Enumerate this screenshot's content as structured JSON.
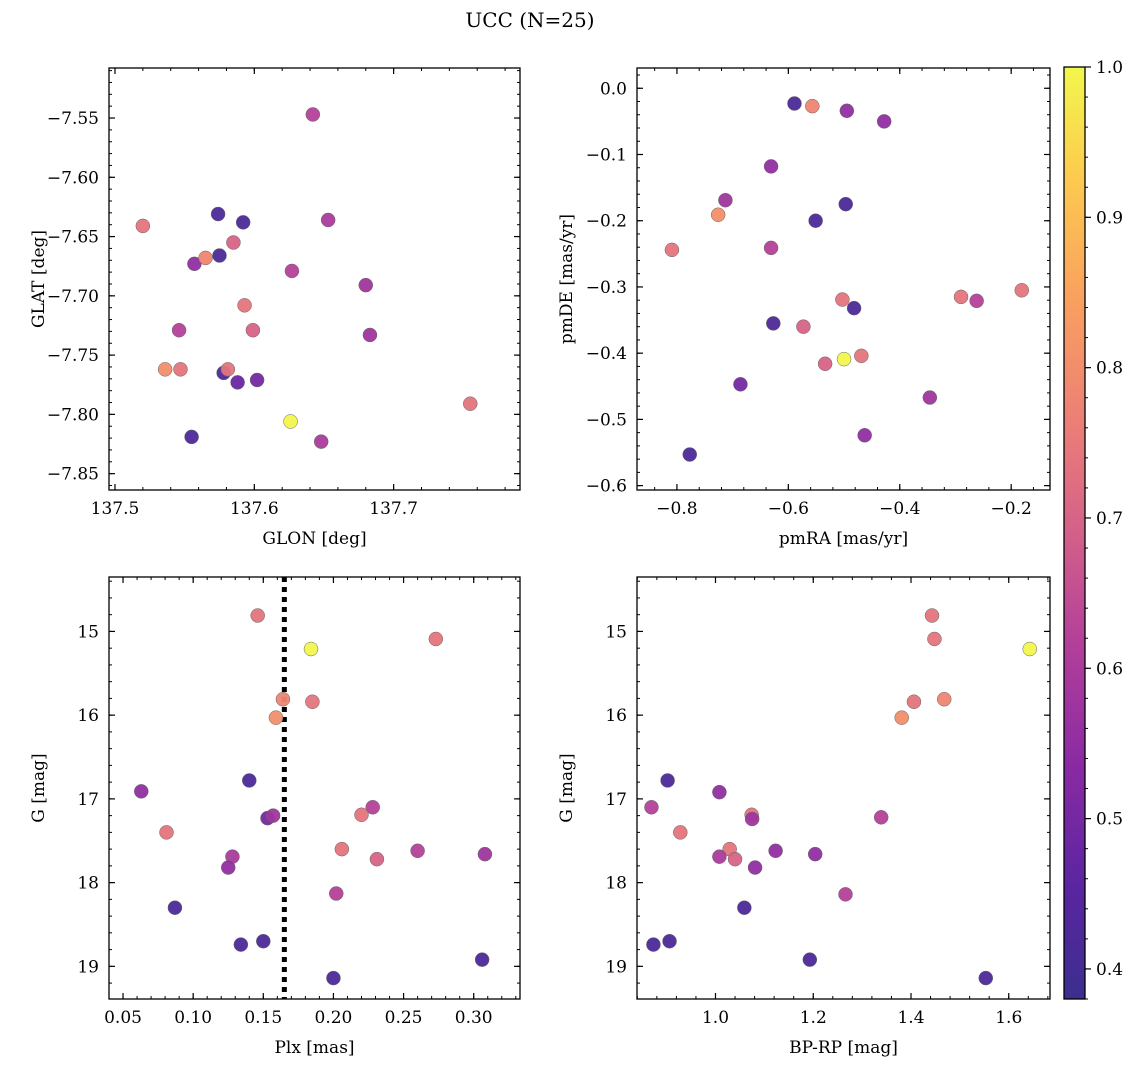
{
  "figure": {
    "title": "UCC (N=25)"
  },
  "colorbar": {
    "colormap": "plasma",
    "range": [
      0.38,
      1.0
    ],
    "ticks": [
      "0.4",
      "0.5",
      "0.6",
      "0.7",
      "0.8",
      "0.9",
      "1.0"
    ],
    "tick_values": [
      0.4,
      0.5,
      0.6,
      0.7,
      0.8,
      0.9,
      1.0
    ]
  },
  "chart_data": [
    {
      "type": "scatter",
      "xlabel": "GLON [deg]",
      "ylabel": "GLAT [deg]",
      "xlim": [
        137.4957,
        137.7907
      ],
      "ylim": [
        -7.8638,
        -7.5078
      ],
      "y_inverted": false,
      "xticks": [
        137.5,
        137.6,
        137.7
      ],
      "xtick_labels": [
        "137.5",
        "137.6",
        "137.7"
      ],
      "yticks": [
        -7.55,
        -7.6,
        -7.65,
        -7.7,
        -7.75,
        -7.8,
        -7.85
      ],
      "ytick_labels": [
        "−7.55",
        "−7.60",
        "−7.65",
        "−7.70",
        "−7.75",
        "−7.80",
        "−7.85"
      ],
      "points": [
        {
          "x": 137.52,
          "y": -7.641,
          "c": 0.74
        },
        {
          "x": 137.536,
          "y": -7.762,
          "c": 0.8
        },
        {
          "x": 137.546,
          "y": -7.729,
          "c": 0.62
        },
        {
          "x": 137.547,
          "y": -7.762,
          "c": 0.74
        },
        {
          "x": 137.555,
          "y": -7.819,
          "c": 0.42
        },
        {
          "x": 137.557,
          "y": -7.673,
          "c": 0.55
        },
        {
          "x": 137.565,
          "y": -7.668,
          "c": 0.78
        },
        {
          "x": 137.574,
          "y": -7.631,
          "c": 0.42
        },
        {
          "x": 137.575,
          "y": -7.666,
          "c": 0.42
        },
        {
          "x": 137.578,
          "y": -7.765,
          "c": 0.42
        },
        {
          "x": 137.581,
          "y": -7.762,
          "c": 0.74
        },
        {
          "x": 137.585,
          "y": -7.655,
          "c": 0.7
        },
        {
          "x": 137.588,
          "y": -7.773,
          "c": 0.48
        },
        {
          "x": 137.592,
          "y": -7.638,
          "c": 0.42
        },
        {
          "x": 137.593,
          "y": -7.708,
          "c": 0.74
        },
        {
          "x": 137.599,
          "y": -7.729,
          "c": 0.7
        },
        {
          "x": 137.602,
          "y": -7.771,
          "c": 0.5
        },
        {
          "x": 137.626,
          "y": -7.806,
          "c": 1.0
        },
        {
          "x": 137.627,
          "y": -7.679,
          "c": 0.62
        },
        {
          "x": 137.642,
          "y": -7.547,
          "c": 0.62
        },
        {
          "x": 137.648,
          "y": -7.823,
          "c": 0.6
        },
        {
          "x": 137.653,
          "y": -7.636,
          "c": 0.6
        },
        {
          "x": 137.68,
          "y": -7.691,
          "c": 0.58
        },
        {
          "x": 137.683,
          "y": -7.733,
          "c": 0.58
        },
        {
          "x": 137.755,
          "y": -7.791,
          "c": 0.74
        }
      ]
    },
    {
      "type": "scatter",
      "xlabel": "pmRA [mas/yr]",
      "ylabel": "pmDE [mas/yr]",
      "xlim": [
        -0.8717,
        -0.1303
      ],
      "ylim": [
        -0.6066,
        0.0306
      ],
      "y_inverted": false,
      "xticks": [
        -0.8,
        -0.6,
        -0.4,
        -0.2
      ],
      "xtick_labels": [
        "−0.8",
        "−0.6",
        "−0.4",
        "−0.2"
      ],
      "yticks": [
        0.0,
        -0.1,
        -0.2,
        -0.3,
        -0.4,
        -0.5,
        -0.6
      ],
      "ytick_labels": [
        "0.0",
        "−0.1",
        "−0.2",
        "−0.3",
        "−0.4",
        "−0.5",
        "−0.6"
      ],
      "points": [
        {
          "x": -0.589,
          "y": -0.023,
          "c": 0.42
        },
        {
          "x": -0.557,
          "y": -0.027,
          "c": 0.78
        },
        {
          "x": -0.495,
          "y": -0.034,
          "c": 0.55
        },
        {
          "x": -0.428,
          "y": -0.05,
          "c": 0.55
        },
        {
          "x": -0.631,
          "y": -0.118,
          "c": 0.55
        },
        {
          "x": -0.713,
          "y": -0.169,
          "c": 0.58
        },
        {
          "x": -0.726,
          "y": -0.191,
          "c": 0.8
        },
        {
          "x": -0.497,
          "y": -0.175,
          "c": 0.42
        },
        {
          "x": -0.551,
          "y": -0.2,
          "c": 0.42
        },
        {
          "x": -0.809,
          "y": -0.244,
          "c": 0.74
        },
        {
          "x": -0.631,
          "y": -0.241,
          "c": 0.62
        },
        {
          "x": -0.503,
          "y": -0.319,
          "c": 0.74
        },
        {
          "x": -0.29,
          "y": -0.315,
          "c": 0.74
        },
        {
          "x": -0.262,
          "y": -0.321,
          "c": 0.62
        },
        {
          "x": -0.181,
          "y": -0.305,
          "c": 0.74
        },
        {
          "x": -0.482,
          "y": -0.332,
          "c": 0.42
        },
        {
          "x": -0.627,
          "y": -0.355,
          "c": 0.42
        },
        {
          "x": -0.573,
          "y": -0.36,
          "c": 0.7
        },
        {
          "x": -0.469,
          "y": -0.404,
          "c": 0.74
        },
        {
          "x": -0.5,
          "y": -0.409,
          "c": 1.0
        },
        {
          "x": -0.534,
          "y": -0.416,
          "c": 0.7
        },
        {
          "x": -0.686,
          "y": -0.447,
          "c": 0.5
        },
        {
          "x": -0.346,
          "y": -0.467,
          "c": 0.58
        },
        {
          "x": -0.463,
          "y": -0.524,
          "c": 0.55
        },
        {
          "x": -0.777,
          "y": -0.553,
          "c": 0.42
        }
      ]
    },
    {
      "type": "scatter",
      "xlabel": "Plx [mas]",
      "ylabel": "G [mag]",
      "xlim": [
        0.04,
        0.333
      ],
      "ylim": [
        14.35,
        19.39
      ],
      "y_inverted": true,
      "xticks": [
        0.05,
        0.1,
        0.15,
        0.2,
        0.25,
        0.3
      ],
      "xtick_labels": [
        "0.05",
        "0.10",
        "0.15",
        "0.20",
        "0.25",
        "0.30"
      ],
      "yticks": [
        15,
        16,
        17,
        18,
        19
      ],
      "ytick_labels": [
        "15",
        "16",
        "17",
        "18",
        "19"
      ],
      "vline": {
        "x": 0.165,
        "style": "dotted",
        "color": "#000000"
      },
      "points": [
        {
          "x": 0.146,
          "y": 14.81,
          "c": 0.74
        },
        {
          "x": 0.184,
          "y": 15.21,
          "c": 1.0
        },
        {
          "x": 0.273,
          "y": 15.09,
          "c": 0.74
        },
        {
          "x": 0.164,
          "y": 15.81,
          "c": 0.78
        },
        {
          "x": 0.185,
          "y": 15.84,
          "c": 0.74
        },
        {
          "x": 0.159,
          "y": 16.03,
          "c": 0.8
        },
        {
          "x": 0.14,
          "y": 16.78,
          "c": 0.42
        },
        {
          "x": 0.063,
          "y": 16.91,
          "c": 0.55
        },
        {
          "x": 0.228,
          "y": 17.1,
          "c": 0.62
        },
        {
          "x": 0.081,
          "y": 17.4,
          "c": 0.74
        },
        {
          "x": 0.22,
          "y": 17.19,
          "c": 0.74
        },
        {
          "x": 0.153,
          "y": 17.23,
          "c": 0.5
        },
        {
          "x": 0.157,
          "y": 17.2,
          "c": 0.58
        },
        {
          "x": 0.206,
          "y": 17.6,
          "c": 0.74
        },
        {
          "x": 0.26,
          "y": 17.62,
          "c": 0.62
        },
        {
          "x": 0.128,
          "y": 17.69,
          "c": 0.6
        },
        {
          "x": 0.231,
          "y": 17.72,
          "c": 0.7
        },
        {
          "x": 0.308,
          "y": 17.66,
          "c": 0.58
        },
        {
          "x": 0.125,
          "y": 17.82,
          "c": 0.55
        },
        {
          "x": 0.202,
          "y": 18.13,
          "c": 0.62
        },
        {
          "x": 0.087,
          "y": 18.3,
          "c": 0.42
        },
        {
          "x": 0.15,
          "y": 18.7,
          "c": 0.42
        },
        {
          "x": 0.134,
          "y": 18.74,
          "c": 0.42
        },
        {
          "x": 0.306,
          "y": 18.92,
          "c": 0.42
        },
        {
          "x": 0.2,
          "y": 19.14,
          "c": 0.42
        }
      ]
    },
    {
      "type": "scatter",
      "xlabel": "BP-RP [mag]",
      "ylabel": "G [mag]",
      "xlim": [
        0.8394,
        1.6844
      ],
      "ylim": [
        14.35,
        19.39
      ],
      "y_inverted": true,
      "xticks": [
        1.0,
        1.2,
        1.4,
        1.6
      ],
      "xtick_labels": [
        "1.0",
        "1.2",
        "1.4",
        "1.6"
      ],
      "yticks": [
        15,
        16,
        17,
        18,
        19
      ],
      "ytick_labels": [
        "15",
        "16",
        "17",
        "18",
        "19"
      ],
      "points": [
        {
          "x": 1.443,
          "y": 14.81,
          "c": 0.74
        },
        {
          "x": 1.448,
          "y": 15.09,
          "c": 0.74
        },
        {
          "x": 1.643,
          "y": 15.21,
          "c": 1.0
        },
        {
          "x": 1.406,
          "y": 15.84,
          "c": 0.74
        },
        {
          "x": 1.468,
          "y": 15.81,
          "c": 0.78
        },
        {
          "x": 1.381,
          "y": 16.03,
          "c": 0.8
        },
        {
          "x": 0.902,
          "y": 16.78,
          "c": 0.42
        },
        {
          "x": 1.008,
          "y": 16.92,
          "c": 0.55
        },
        {
          "x": 0.869,
          "y": 17.1,
          "c": 0.62
        },
        {
          "x": 1.074,
          "y": 17.19,
          "c": 0.74
        },
        {
          "x": 1.075,
          "y": 17.24,
          "c": 0.58
        },
        {
          "x": 1.339,
          "y": 17.22,
          "c": 0.62
        },
        {
          "x": 0.928,
          "y": 17.4,
          "c": 0.74
        },
        {
          "x": 1.029,
          "y": 17.6,
          "c": 0.74
        },
        {
          "x": 1.123,
          "y": 17.62,
          "c": 0.55
        },
        {
          "x": 1.008,
          "y": 17.69,
          "c": 0.6
        },
        {
          "x": 1.04,
          "y": 17.72,
          "c": 0.7
        },
        {
          "x": 1.204,
          "y": 17.66,
          "c": 0.55
        },
        {
          "x": 1.081,
          "y": 17.82,
          "c": 0.55
        },
        {
          "x": 1.266,
          "y": 18.14,
          "c": 0.62
        },
        {
          "x": 1.059,
          "y": 18.3,
          "c": 0.42
        },
        {
          "x": 0.906,
          "y": 18.7,
          "c": 0.42
        },
        {
          "x": 0.873,
          "y": 18.74,
          "c": 0.42
        },
        {
          "x": 1.193,
          "y": 18.92,
          "c": 0.42
        },
        {
          "x": 1.553,
          "y": 19.14,
          "c": 0.42
        }
      ]
    }
  ]
}
